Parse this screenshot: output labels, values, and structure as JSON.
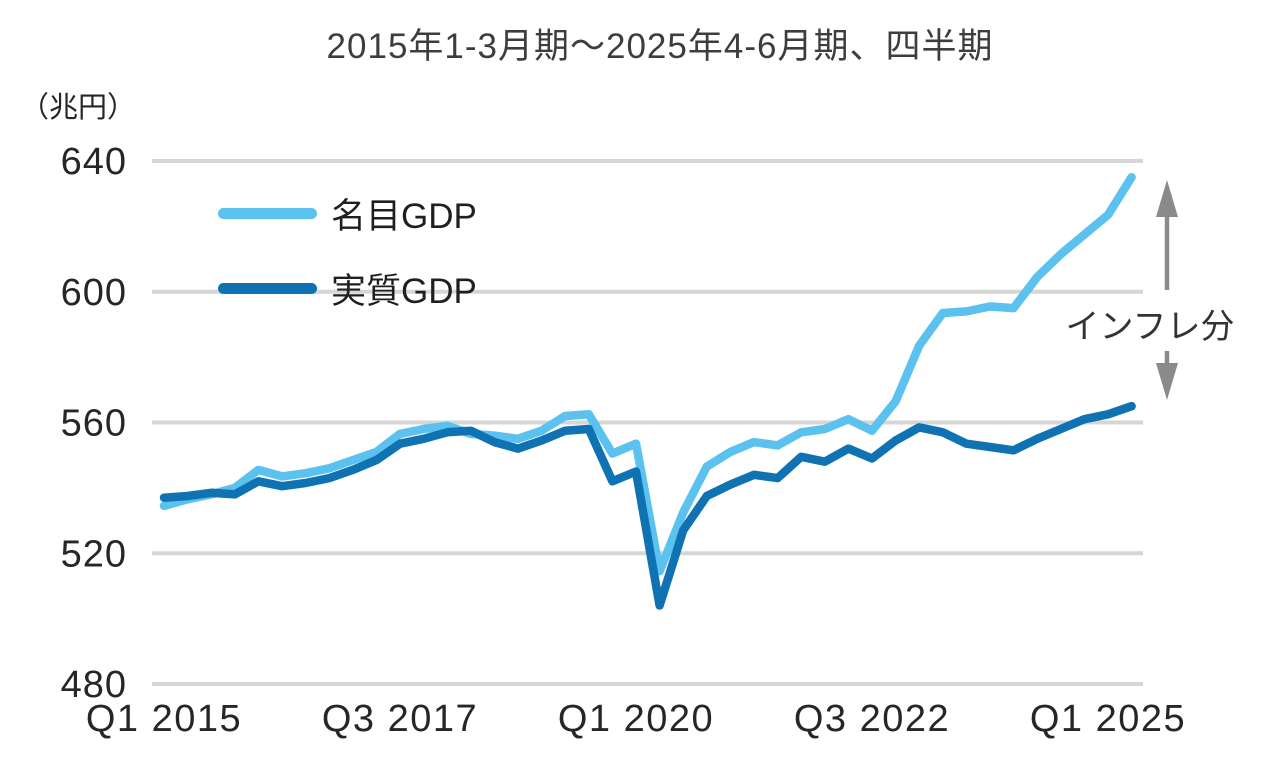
{
  "title": "2015年1-3月期～2025年4-6月期、四半期",
  "y_axis": {
    "unit_label": "（兆円）",
    "ticks": [
      640,
      600,
      560,
      520,
      480
    ],
    "min": 480,
    "max": 640
  },
  "x_axis": {
    "ticks": [
      {
        "index": 0,
        "label": "Q1 2015"
      },
      {
        "index": 10,
        "label": "Q3 2017"
      },
      {
        "index": 20,
        "label": "Q1 2020"
      },
      {
        "index": 30,
        "label": "Q3 2022"
      },
      {
        "index": 40,
        "label": "Q1 2025"
      }
    ]
  },
  "annotation": {
    "label": "インフレ分",
    "arrow_color": "#8A8A8A"
  },
  "colors": {
    "gridline": "#D6D6D6",
    "tick_text": "#262626",
    "title_text": "#3D3D3D"
  },
  "chart_data": {
    "type": "line",
    "title": "2015年1-3月期～2025年4-6月期、四半期",
    "unit": "兆円",
    "ylim": [
      480,
      640
    ],
    "grid": "horizontal",
    "legend_position": "top-left-inside",
    "categories": [
      "2015Q1",
      "2015Q2",
      "2015Q3",
      "2015Q4",
      "2016Q1",
      "2016Q2",
      "2016Q3",
      "2016Q4",
      "2017Q1",
      "2017Q2",
      "2017Q3",
      "2017Q4",
      "2018Q1",
      "2018Q2",
      "2018Q3",
      "2018Q4",
      "2019Q1",
      "2019Q2",
      "2019Q3",
      "2019Q4",
      "2020Q1",
      "2020Q2",
      "2020Q3",
      "2020Q4",
      "2021Q1",
      "2021Q2",
      "2021Q3",
      "2021Q4",
      "2022Q1",
      "2022Q2",
      "2022Q3",
      "2022Q4",
      "2023Q1",
      "2023Q2",
      "2023Q3",
      "2023Q4",
      "2024Q1",
      "2024Q2",
      "2024Q3",
      "2024Q4",
      "2025Q1",
      "2025Q2"
    ],
    "series": [
      {
        "name": "名目GDP",
        "color": "#5BC2EF",
        "values": [
          534.5,
          536.5,
          538,
          540,
          545.5,
          543.5,
          544.5,
          546,
          548.5,
          551,
          556.5,
          558,
          559,
          556.5,
          556,
          555,
          557.5,
          562,
          562.5,
          550.5,
          553.5,
          514.5,
          532.5,
          546.5,
          551,
          554,
          553,
          557,
          558,
          561,
          557.5,
          566.5,
          583.5,
          593.5,
          594,
          595.5,
          595,
          604.5,
          611.5,
          617.5,
          623.5,
          635
        ]
      },
      {
        "name": "実質GDP",
        "color": "#0F72B2",
        "values": [
          537,
          537.5,
          538.5,
          538,
          542,
          540.5,
          541.5,
          543,
          545.5,
          548.5,
          553.5,
          555,
          557,
          557.5,
          554,
          552,
          554.5,
          557.5,
          558,
          542,
          545,
          504,
          527,
          537.5,
          541,
          544,
          543,
          549.5,
          548,
          552,
          549,
          554.5,
          558.5,
          557,
          553.5,
          552.5,
          551.5,
          555,
          558,
          561,
          562.5,
          565
        ]
      }
    ]
  }
}
